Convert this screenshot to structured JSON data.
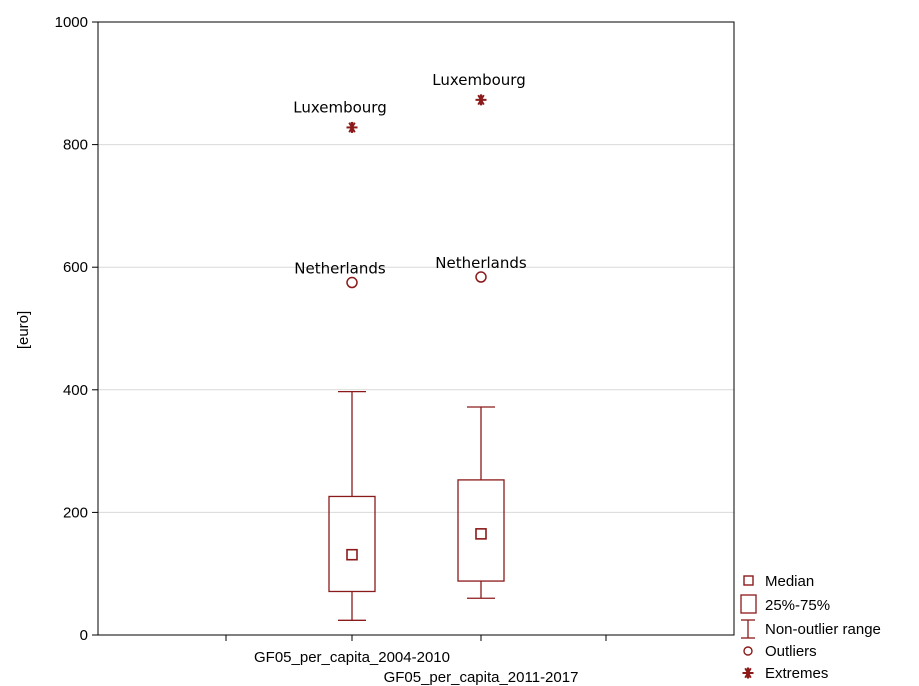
{
  "chart_data": {
    "type": "boxplot",
    "ylabel": "[euro]",
    "ylim": [
      0,
      1000
    ],
    "yticks": [
      0,
      200,
      400,
      600,
      800,
      1000
    ],
    "grid": true,
    "legend_position": "bottom-right",
    "categories": [
      "GF05_per_capita_2004-2010",
      "GF05_per_capita_2011-2017"
    ],
    "boxes": [
      {
        "category": "GF05_per_capita_2004-2010",
        "median": 131,
        "q1": 71,
        "q3": 226,
        "whisker_low": 24,
        "whisker_high": 397
      },
      {
        "category": "GF05_per_capita_2011-2017",
        "median": 165,
        "q1": 88,
        "q3": 253,
        "whisker_low": 60,
        "whisker_high": 372
      }
    ],
    "outliers": [
      {
        "category": "GF05_per_capita_2004-2010",
        "value": 575,
        "label": "Netherlands"
      },
      {
        "category": "GF05_per_capita_2011-2017",
        "value": 584,
        "label": "Netherlands"
      }
    ],
    "extremes": [
      {
        "category": "GF05_per_capita_2004-2010",
        "value": 828,
        "label": "Luxembourg"
      },
      {
        "category": "GF05_per_capita_2011-2017",
        "value": 873,
        "label": "Luxembourg"
      }
    ],
    "legend": [
      "Median",
      "25%-75%",
      "Non-outlier range",
      "Outliers",
      "Extremes"
    ],
    "colors": {
      "series": "#8b1a1a",
      "grid": "#d9d9d9",
      "axis": "#000000"
    }
  }
}
